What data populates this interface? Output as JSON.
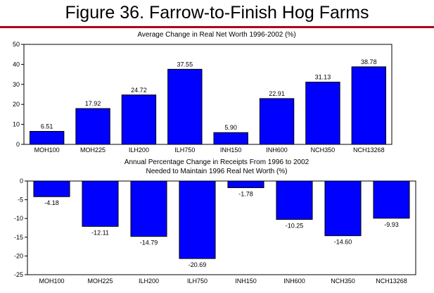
{
  "figure_title": "Figure 36. Farrow-to-Finish Hog Farms",
  "colors": {
    "bar": "#0000ff",
    "rule": "#b0001c"
  },
  "chart_data": [
    {
      "type": "bar",
      "title": "Average Change in Real Net Worth 1996-2002 (%)",
      "categories": [
        "MOH100",
        "MOH225",
        "ILH200",
        "ILH750",
        "INH150",
        "INH600",
        "NCH350",
        "NCH13268"
      ],
      "values": [
        6.51,
        17.92,
        24.72,
        37.55,
        5.9,
        22.91,
        31.13,
        38.78
      ],
      "data_labels": [
        "6.51",
        "17.92",
        "24.72",
        "37.55",
        "5.90",
        "22.91",
        "31.13",
        "38.78"
      ],
      "ylim": [
        0,
        50
      ],
      "yticks": [
        0,
        10,
        20,
        30,
        40,
        50
      ],
      "xlabel": "",
      "ylabel": "",
      "grid": false
    },
    {
      "type": "bar",
      "title_lines": [
        "Annual Percentage Change in Receipts From 1996 to 2002",
        "Needed to Maintain 1996 Real Net Worth (%)"
      ],
      "categories": [
        "MOH100",
        "MOH225",
        "ILH200",
        "ILH750",
        "INH150",
        "INH600",
        "NCH350",
        "NCH13268"
      ],
      "values": [
        -4.18,
        -12.11,
        -14.79,
        -20.69,
        -1.78,
        -10.25,
        -14.6,
        -9.93
      ],
      "data_labels": [
        "-4.18",
        "-12.11",
        "-14.79",
        "-20.69",
        "-1.78",
        "-10.25",
        "-14.60",
        "-9.93"
      ],
      "ylim": [
        -25,
        0
      ],
      "yticks": [
        0,
        -5,
        -10,
        -15,
        -20,
        -25
      ],
      "xlabel": "",
      "ylabel": "",
      "grid": false
    }
  ]
}
